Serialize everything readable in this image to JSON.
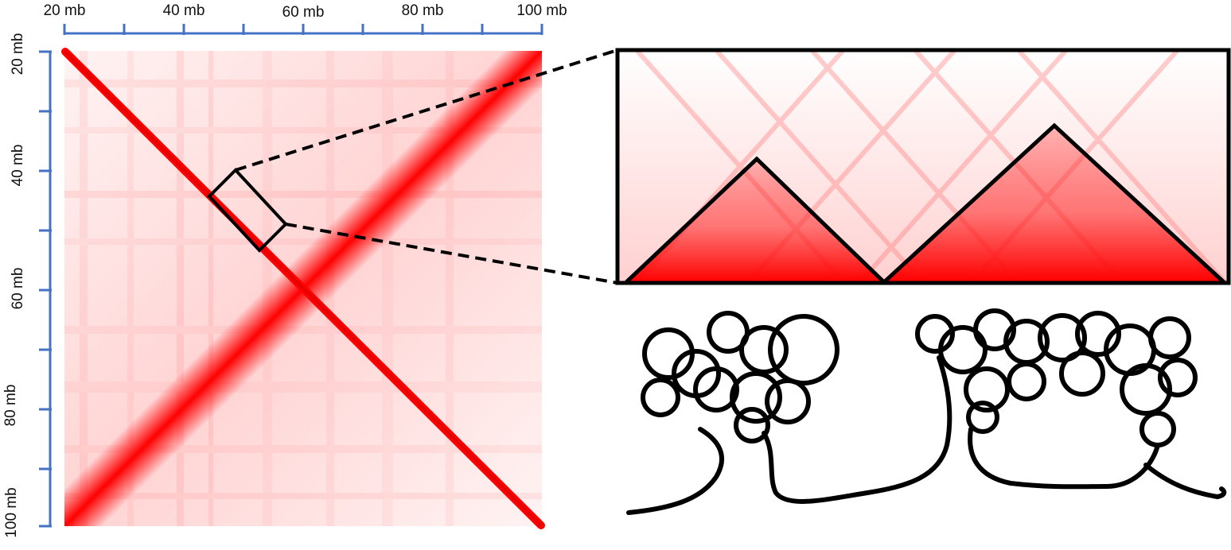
{
  "colors": {
    "axis": "#4472c4",
    "contact": "#ff0000",
    "outline": "#000000"
  },
  "axes": {
    "x_ticks": [
      "20 mb",
      "40 mb",
      "60 mb",
      "80 mb",
      "100 mb"
    ],
    "y_ticks": [
      "20 mb",
      "40 mb",
      "60 mb",
      "80 mb",
      "100 mb"
    ],
    "range_mb": [
      20,
      100
    ]
  },
  "zoom": {
    "region_mb": [
      44,
      57
    ],
    "domains": 2
  }
}
